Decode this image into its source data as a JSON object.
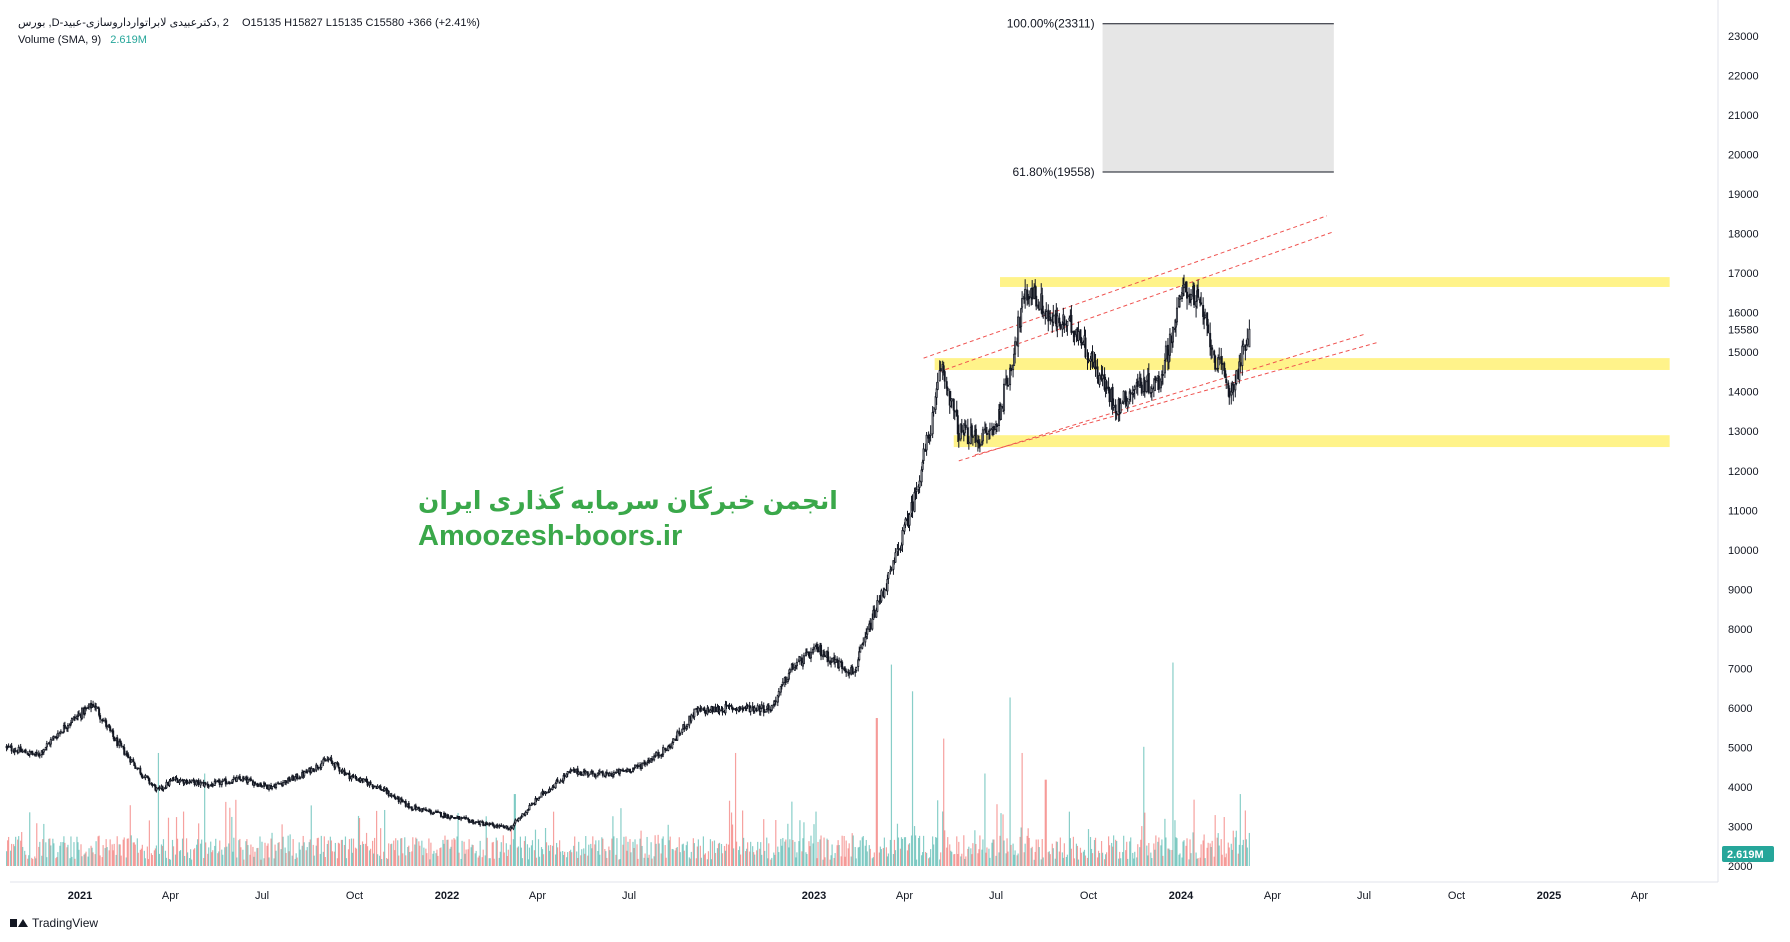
{
  "legend": {
    "symbol_line": "2 ,دکترعبیدی  لابراتوارداروسازی-عبید-D, بورس",
    "ohlc": "O15135  H15827  L15135  C15580  +366 (+2.41%)",
    "volume_label": "Volume (SMA, 9)",
    "volume_value": "2.619M"
  },
  "watermark": {
    "persian": "انجمن خبرگان سرمایه گذاری ایران",
    "url": "Amoozesh-boors.ir"
  },
  "branding": {
    "name": "TradingView",
    "icon": "tradingview-logo-icon"
  },
  "colors": {
    "up": "#26a69a",
    "down": "#ef5350",
    "candle": "#131722",
    "zone": "#fff176",
    "channel": "#ef5350",
    "fib_fill": "#e6e6e6"
  },
  "chart_data": {
    "type": "candlestick",
    "price_scale": {
      "min": 2000,
      "max": 23300,
      "ticks": [
        2000,
        3000,
        4000,
        5000,
        6000,
        7000,
        8000,
        9000,
        10000,
        11000,
        12000,
        13000,
        14000,
        15000,
        16000,
        17000,
        18000,
        19000,
        20000,
        21000,
        22000,
        23000
      ]
    },
    "last_price": {
      "value": 15580,
      "label": "15580"
    },
    "volume_last": {
      "label": "2.619M"
    },
    "time_labels": [
      {
        "label": "2021",
        "date": "2021-01",
        "bold": true
      },
      {
        "label": "Apr",
        "date": "2021-04"
      },
      {
        "label": "Jul",
        "date": "2021-07"
      },
      {
        "label": "Oct",
        "date": "2021-10"
      },
      {
        "label": "2022",
        "date": "2022-01",
        "bold": true
      },
      {
        "label": "Apr",
        "date": "2022-04"
      },
      {
        "label": "Jul",
        "date": "2022-07"
      },
      {
        "label": "2023",
        "date": "2023-01",
        "bold": true
      },
      {
        "label": "Apr",
        "date": "2023-04"
      },
      {
        "label": "Jul",
        "date": "2023-07"
      },
      {
        "label": "Oct",
        "date": "2023-10"
      },
      {
        "label": "2024",
        "date": "2024-01",
        "bold": true
      },
      {
        "label": "Apr",
        "date": "2024-04"
      },
      {
        "label": "Jul",
        "date": "2024-07"
      },
      {
        "label": "Oct",
        "date": "2024-10"
      },
      {
        "label": "2025",
        "date": "2025-01",
        "bold": true
      },
      {
        "label": "Apr",
        "date": "2025-04"
      }
    ],
    "price_path": [
      [
        "2020-10-20",
        5000
      ],
      [
        "2020-11-20",
        4800
      ],
      [
        "2020-12-20",
        5600
      ],
      [
        "2021-01-15",
        6100
      ],
      [
        "2021-02-05",
        5200
      ],
      [
        "2021-03-05",
        4300
      ],
      [
        "2021-03-20",
        3900
      ],
      [
        "2021-04-05",
        4200
      ],
      [
        "2021-05-10",
        4050
      ],
      [
        "2021-06-10",
        4200
      ],
      [
        "2021-07-10",
        4000
      ],
      [
        "2021-08-10",
        4300
      ],
      [
        "2021-09-05",
        4700
      ],
      [
        "2021-09-25",
        4300
      ],
      [
        "2021-10-25",
        4000
      ],
      [
        "2021-11-25",
        3500
      ],
      [
        "2022-01-05",
        3250
      ],
      [
        "2022-02-10",
        3050
      ],
      [
        "2022-03-05",
        2950
      ],
      [
        "2022-04-05",
        3800
      ],
      [
        "2022-05-05",
        4400
      ],
      [
        "2022-06-10",
        4300
      ],
      [
        "2022-07-10",
        4500
      ],
      [
        "2022-08-10",
        5000
      ],
      [
        "2022-09-05",
        5900
      ],
      [
        "2022-10-10",
        6000
      ],
      [
        "2022-11-20",
        6000
      ],
      [
        "2022-12-10",
        7000
      ],
      [
        "2023-01-05",
        7500
      ],
      [
        "2023-01-20",
        7200
      ],
      [
        "2023-02-10",
        6900
      ],
      [
        "2023-03-01",
        8300
      ],
      [
        "2023-03-20",
        9500
      ],
      [
        "2023-04-10",
        11200
      ],
      [
        "2023-05-01",
        13500
      ],
      [
        "2023-05-08",
        14700
      ],
      [
        "2023-05-25",
        13000
      ],
      [
        "2023-06-15",
        12800
      ],
      [
        "2023-07-01",
        13100
      ],
      [
        "2023-07-15",
        14500
      ],
      [
        "2023-07-28",
        16200
      ],
      [
        "2023-08-05",
        16600
      ],
      [
        "2023-08-25",
        15800
      ],
      [
        "2023-09-20",
        15600
      ],
      [
        "2023-10-10",
        14500
      ],
      [
        "2023-10-30",
        13600
      ],
      [
        "2023-11-20",
        14200
      ],
      [
        "2023-12-10",
        14200
      ],
      [
        "2023-12-25",
        15600
      ],
      [
        "2024-01-05",
        16700
      ],
      [
        "2024-01-20",
        16200
      ],
      [
        "2024-02-05",
        14800
      ],
      [
        "2024-02-20",
        14000
      ],
      [
        "2024-03-01",
        14800
      ],
      [
        "2024-03-10",
        15580
      ]
    ],
    "volume_scale": {
      "baseline_price": 2000,
      "top_price": 7200,
      "max_volume": 1.0
    },
    "volume_spikes": [
      [
        "2021-03-20",
        0.55,
        "up"
      ],
      [
        "2021-05-05",
        0.45,
        "up"
      ],
      [
        "2022-03-10",
        0.35,
        "up"
      ],
      [
        "2022-10-15",
        0.55,
        "down"
      ],
      [
        "2023-03-05",
        0.72,
        "down"
      ],
      [
        "2023-03-20",
        0.98,
        "up"
      ],
      [
        "2023-04-10",
        0.85,
        "up"
      ],
      [
        "2023-05-10",
        0.62,
        "down"
      ],
      [
        "2023-06-20",
        0.45,
        "up"
      ],
      [
        "2023-07-15",
        0.82,
        "up"
      ],
      [
        "2023-07-28",
        0.55,
        "down"
      ],
      [
        "2023-08-20",
        0.42,
        "down"
      ],
      [
        "2023-11-25",
        0.58,
        "up"
      ],
      [
        "2023-12-25",
        0.99,
        "up"
      ],
      [
        "2024-03-01",
        0.35,
        "up"
      ]
    ],
    "zones": [
      {
        "from": "2023-07-05",
        "to": "2025-05-01",
        "low": 16650,
        "high": 16900
      },
      {
        "from": "2023-05-01",
        "to": "2025-05-01",
        "low": 14550,
        "high": 14850
      },
      {
        "from": "2023-05-20",
        "to": "2025-05-01",
        "low": 12600,
        "high": 12900
      }
    ],
    "channel_lines": [
      {
        "from": [
          "2023-04-20",
          14850
        ],
        "to": [
          "2024-05-25",
          18450
        ]
      },
      {
        "from": [
          "2023-05-05",
          14500
        ],
        "to": [
          "2024-06-01",
          18050
        ]
      },
      {
        "from": [
          "2023-05-25",
          12250
        ],
        "to": [
          "2024-07-01",
          15450
        ]
      },
      {
        "from": [
          "2023-06-10",
          12400
        ],
        "to": [
          "2024-07-15",
          15250
        ]
      }
    ],
    "fibonacci": {
      "from": "2023-10-15",
      "to": "2024-06-01",
      "levels": [
        {
          "label": "100.00%(23311)",
          "price": 23311
        },
        {
          "label": "61.80%(19558)",
          "price": 19558
        }
      ]
    }
  }
}
